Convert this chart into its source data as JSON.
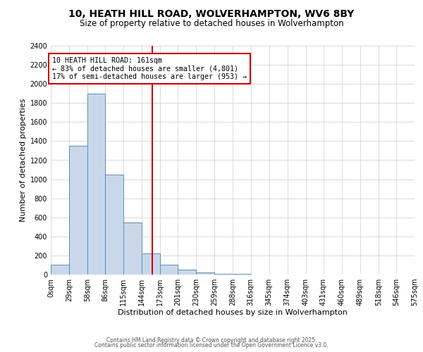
{
  "title1": "10, HEATH HILL ROAD, WOLVERHAMPTON, WV6 8BY",
  "title2": "Size of property relative to detached houses in Wolverhampton",
  "xlabel": "Distribution of detached houses by size in Wolverhampton",
  "ylabel": "Number of detached properties",
  "bin_edges": [
    0,
    29,
    58,
    86,
    115,
    144,
    173,
    201,
    230,
    259,
    288,
    316,
    345,
    374,
    403,
    431,
    460,
    489,
    518,
    546,
    575
  ],
  "bar_heights": [
    100,
    1350,
    1900,
    1050,
    550,
    220,
    100,
    50,
    20,
    10,
    5,
    3,
    2,
    1,
    1,
    1,
    1,
    1,
    1,
    1
  ],
  "bar_color": "#c8d8ea",
  "bar_edge_color": "#5b8db8",
  "vline_x": 161,
  "vline_color": "#cc0000",
  "annotation_text": "10 HEATH HILL ROAD: 161sqm\n← 83% of detached houses are smaller (4,801)\n17% of semi-detached houses are larger (953) →",
  "annotation_box_color": "#ffffff",
  "annotation_box_edge_color": "#cc0000",
  "ylim": [
    0,
    2400
  ],
  "yticks": [
    0,
    200,
    400,
    600,
    800,
    1000,
    1200,
    1400,
    1600,
    1800,
    2000,
    2200,
    2400
  ],
  "tick_labels": [
    "0sqm",
    "29sqm",
    "58sqm",
    "86sqm",
    "115sqm",
    "144sqm",
    "173sqm",
    "201sqm",
    "230sqm",
    "259sqm",
    "288sqm",
    "316sqm",
    "345sqm",
    "374sqm",
    "403sqm",
    "431sqm",
    "460sqm",
    "489sqm",
    "518sqm",
    "546sqm",
    "575sqm"
  ],
  "footer1": "Contains HM Land Registry data © Crown copyright and database right 2025.",
  "footer2": "Contains public sector information licensed under the Open Government Licence v3.0.",
  "background_color": "#ffffff",
  "grid_color": "#cccccc",
  "title1_fontsize": 10,
  "title2_fontsize": 8.5,
  "xlabel_fontsize": 8,
  "ylabel_fontsize": 8,
  "tick_fontsize": 7,
  "footer_fontsize": 5.5,
  "annot_fontsize": 7.2
}
